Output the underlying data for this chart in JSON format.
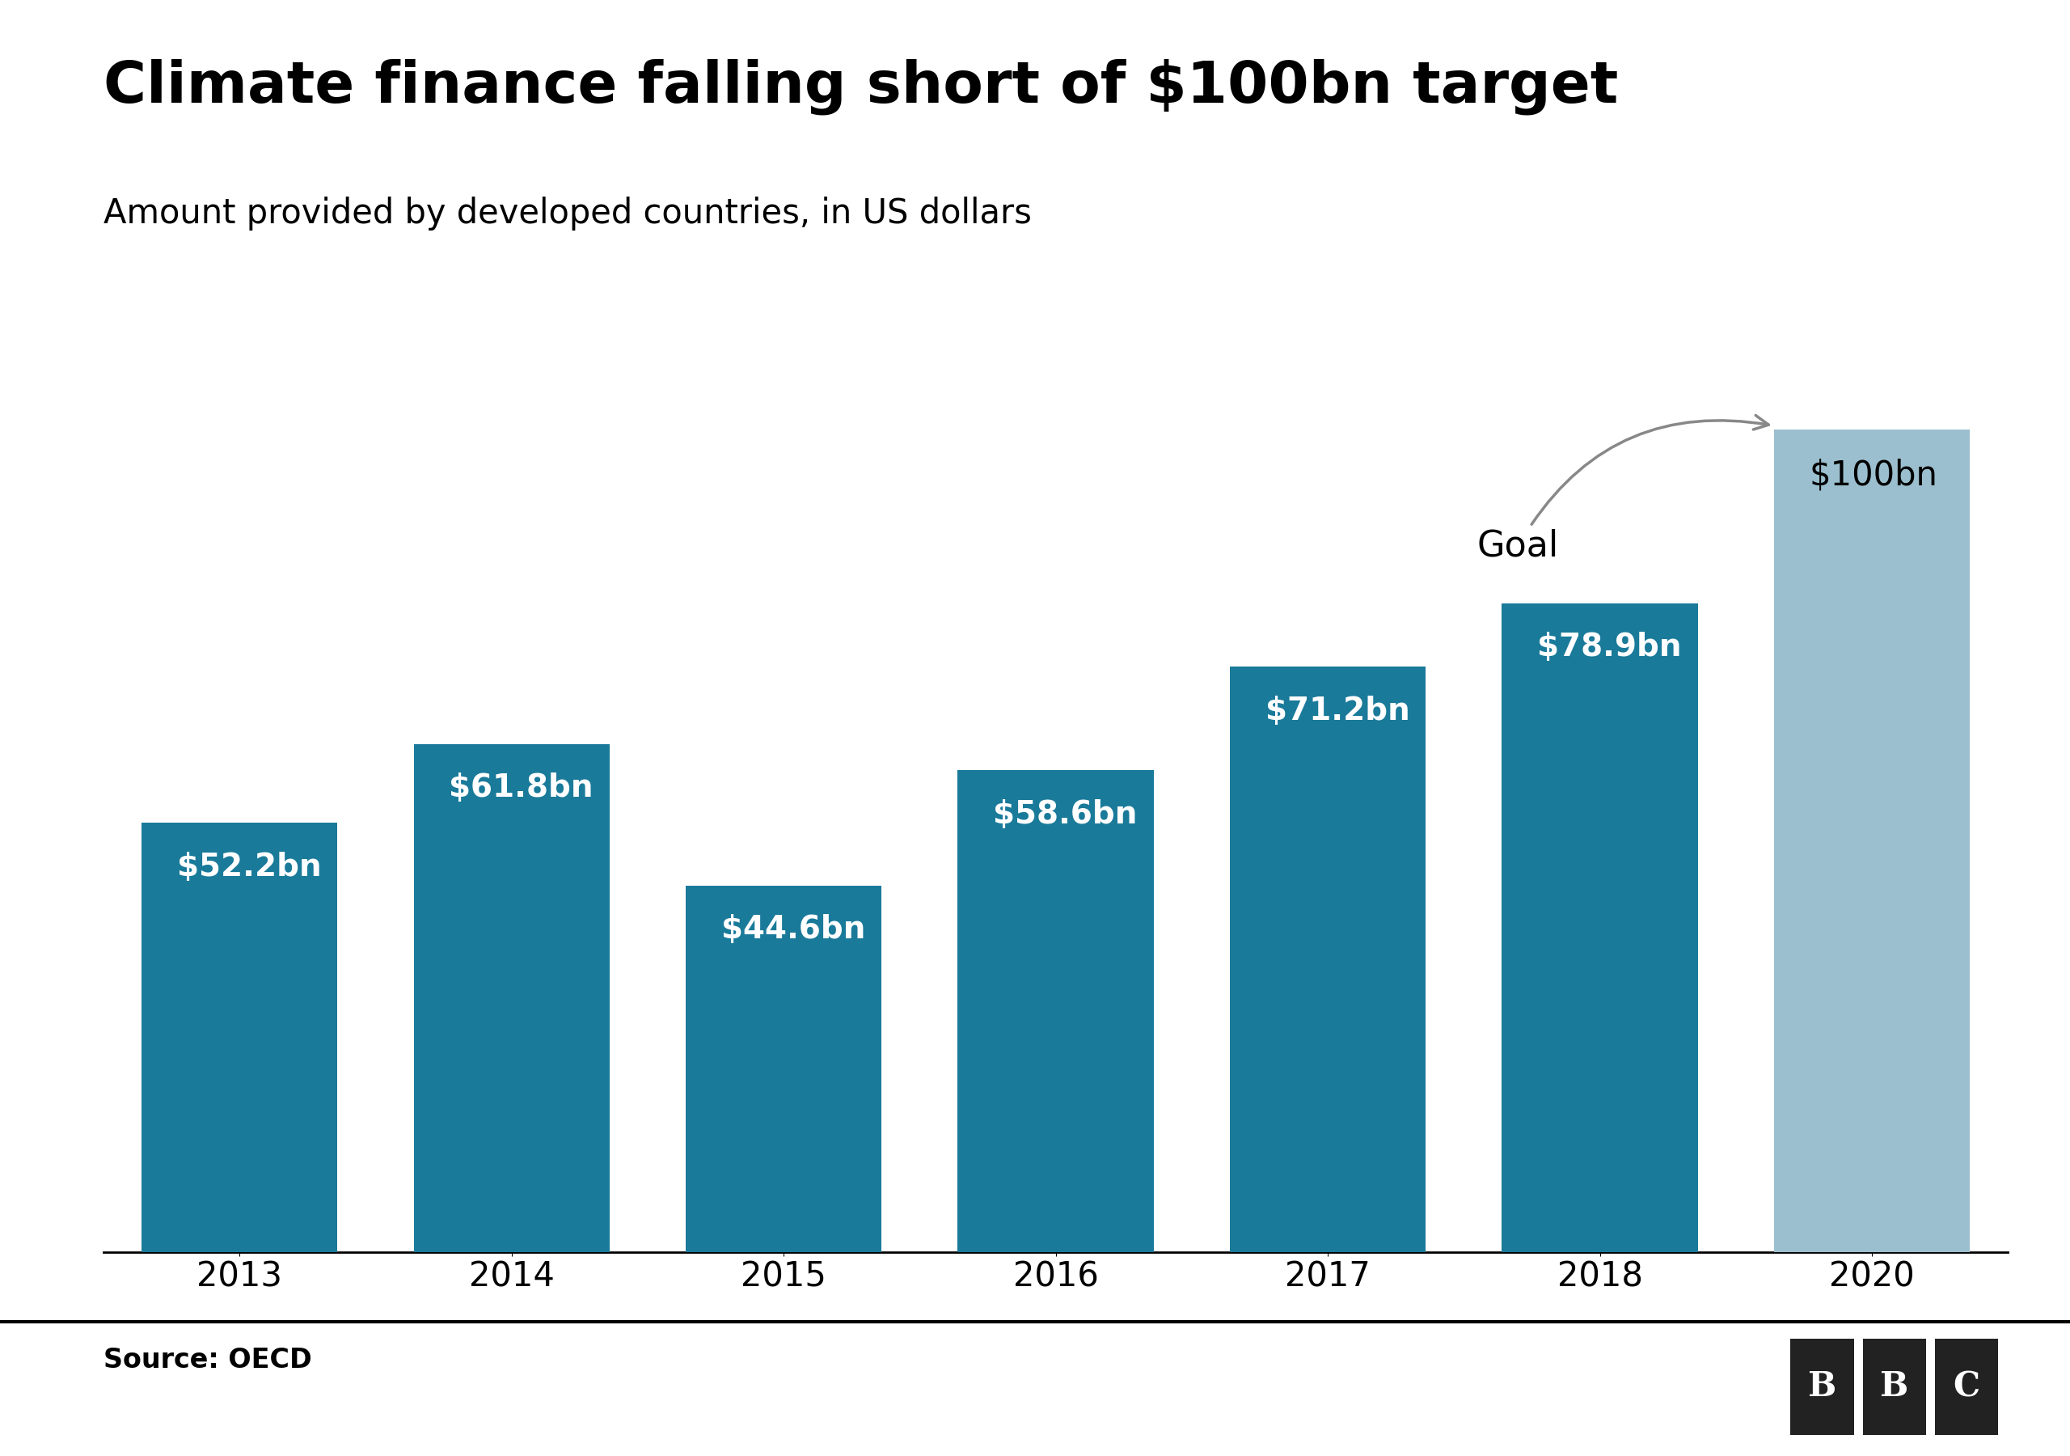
{
  "title": "Climate finance falling short of $100bn target",
  "subtitle": "Amount provided by developed countries, in US dollars",
  "source": "Source: OECD",
  "categories": [
    "2013",
    "2014",
    "2015",
    "2016",
    "2017",
    "2018",
    "2020"
  ],
  "values": [
    52.2,
    61.8,
    44.6,
    58.6,
    71.2,
    78.9,
    100
  ],
  "labels": [
    "$52.2bn",
    "$61.8bn",
    "$44.6bn",
    "$58.6bn",
    "$71.2bn",
    "$78.9bn",
    "$100bn"
  ],
  "bar_colors": [
    "#1a7a9a",
    "#1a7a9a",
    "#1a7a9a",
    "#1a7a9a",
    "#1a7a9a",
    "#1a7a9a",
    "#9bbfce"
  ],
  "label_colors": [
    "white",
    "white",
    "white",
    "white",
    "white",
    "white",
    "black"
  ],
  "goal_annotation": "Goal",
  "title_fontsize": 52,
  "subtitle_fontsize": 30,
  "label_fontsize": 28,
  "tick_fontsize": 30,
  "source_fontsize": 24,
  "background_color": "#ffffff",
  "ylim": [
    0,
    108
  ],
  "bar_width": 0.72
}
